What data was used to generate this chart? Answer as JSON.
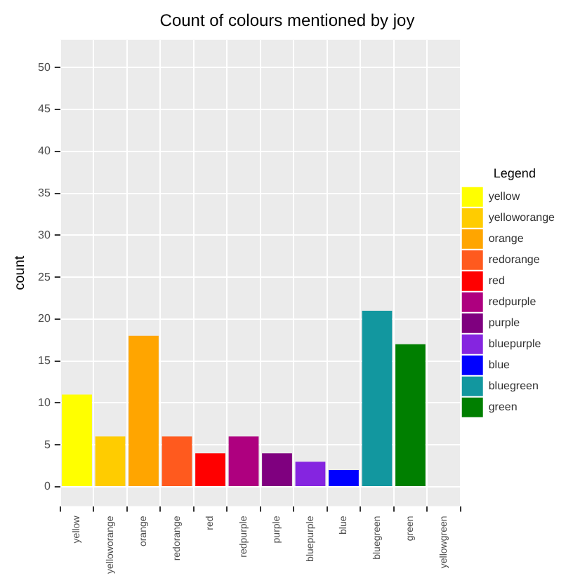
{
  "chart_data": {
    "type": "bar",
    "title": "Count of colours mentioned by joy",
    "ylabel": "count",
    "legend_title": "Legend",
    "legend": "right",
    "categories": [
      "yellow",
      "yelloworange",
      "orange",
      "redorange",
      "red",
      "redpurple",
      "purple",
      "bluepurple",
      "blue",
      "bluegreen",
      "green",
      "yellowgreen"
    ],
    "series": [
      {
        "name": "yellow",
        "color": "#ffff00",
        "values": [
          11,
          null,
          null,
          null,
          null,
          null,
          null,
          null,
          null,
          null,
          null,
          null
        ]
      },
      {
        "name": "yelloworange",
        "color": "#ffcc00",
        "values": [
          null,
          6,
          null,
          null,
          null,
          null,
          null,
          null,
          null,
          null,
          null,
          null
        ]
      },
      {
        "name": "orange",
        "color": "#ffa500",
        "values": [
          null,
          null,
          18,
          null,
          null,
          null,
          null,
          null,
          null,
          null,
          null,
          null
        ]
      },
      {
        "name": "redorange",
        "color": "#ff5a1e",
        "values": [
          null,
          null,
          null,
          6,
          null,
          null,
          null,
          null,
          null,
          null,
          null,
          null
        ]
      },
      {
        "name": "red",
        "color": "#ff0000",
        "values": [
          null,
          null,
          null,
          null,
          4,
          null,
          null,
          null,
          null,
          null,
          null,
          null
        ]
      },
      {
        "name": "redpurple",
        "color": "#ae007f",
        "values": [
          null,
          null,
          null,
          null,
          null,
          6,
          null,
          null,
          null,
          null,
          null,
          null
        ]
      },
      {
        "name": "purple",
        "color": "#7f007f",
        "values": [
          null,
          null,
          null,
          null,
          null,
          null,
          4,
          null,
          null,
          null,
          null,
          null
        ]
      },
      {
        "name": "bluepurple",
        "color": "#8525e0",
        "values": [
          null,
          null,
          null,
          null,
          null,
          null,
          null,
          3,
          null,
          null,
          null,
          null
        ]
      },
      {
        "name": "blue",
        "color": "#0000ff",
        "values": [
          null,
          null,
          null,
          null,
          null,
          null,
          null,
          null,
          2,
          null,
          null,
          null
        ]
      },
      {
        "name": "bluegreen",
        "color": "#12979f",
        "values": [
          null,
          null,
          null,
          null,
          null,
          null,
          null,
          null,
          null,
          21,
          null,
          null
        ]
      },
      {
        "name": "green",
        "color": "#007f00",
        "values": [
          null,
          null,
          null,
          null,
          null,
          null,
          null,
          null,
          null,
          null,
          17,
          null
        ]
      }
    ],
    "ylim": [
      -2.3,
      53.3
    ],
    "yticks": [
      0,
      5,
      10,
      15,
      20,
      25,
      30,
      35,
      40,
      45,
      50
    ],
    "grid": true
  }
}
